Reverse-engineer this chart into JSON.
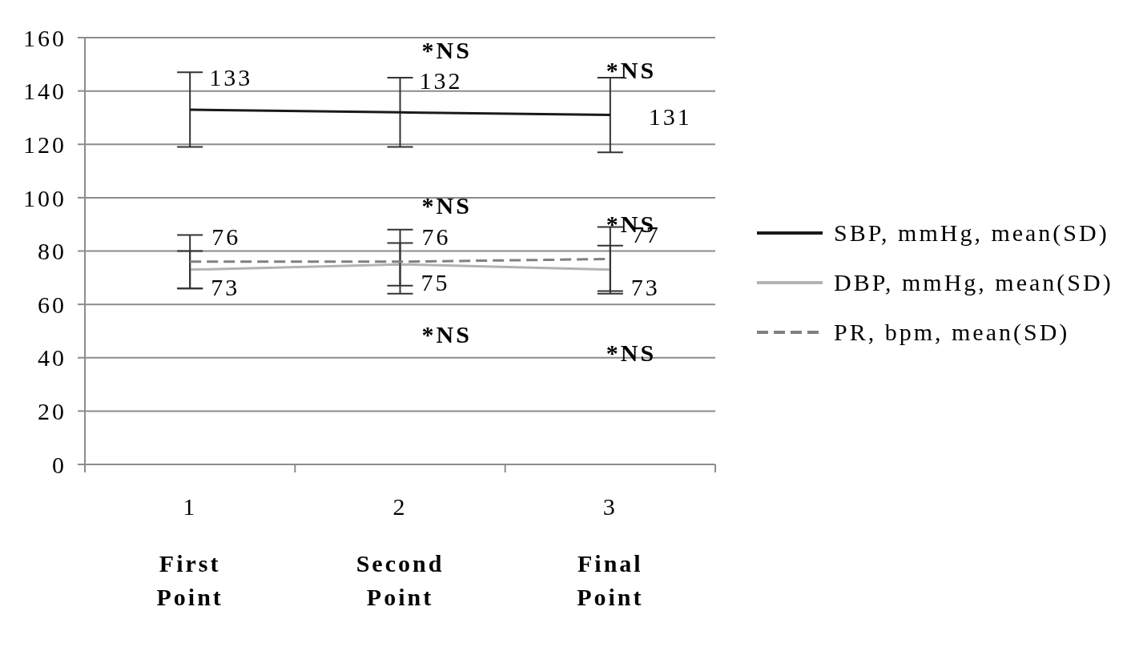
{
  "chart_data": {
    "type": "line",
    "categories": [
      "1",
      "2",
      "3"
    ],
    "series": [
      {
        "name": "SBP, mmHg, mean(SD)",
        "color": "#1a1a1a",
        "values": [
          133,
          132,
          131
        ],
        "errors": [
          14,
          13,
          14
        ]
      },
      {
        "name": "DBP, mmHg, mean(SD)",
        "color": "#b3b3b3",
        "values": [
          73,
          75,
          73
        ],
        "errors": [
          7,
          8,
          9
        ]
      },
      {
        "name": "PR, bpm, mean(SD)",
        "color": "#808080",
        "values": [
          76,
          76,
          77
        ],
        "errors": [
          10,
          12,
          12
        ],
        "line_style": "dashed"
      }
    ],
    "ylim": [
      0,
      160
    ],
    "yticks": [
      0,
      20,
      40,
      60,
      80,
      100,
      120,
      140,
      160
    ],
    "grid": "y",
    "legend": "right",
    "marker": "none",
    "line_style": "solid",
    "data_labels": true,
    "annotations": [
      "*NS",
      "*NS",
      "*NS",
      "*NS",
      "*NS",
      "*NS",
      "First Point",
      "Second Point",
      "Final Point"
    ]
  }
}
